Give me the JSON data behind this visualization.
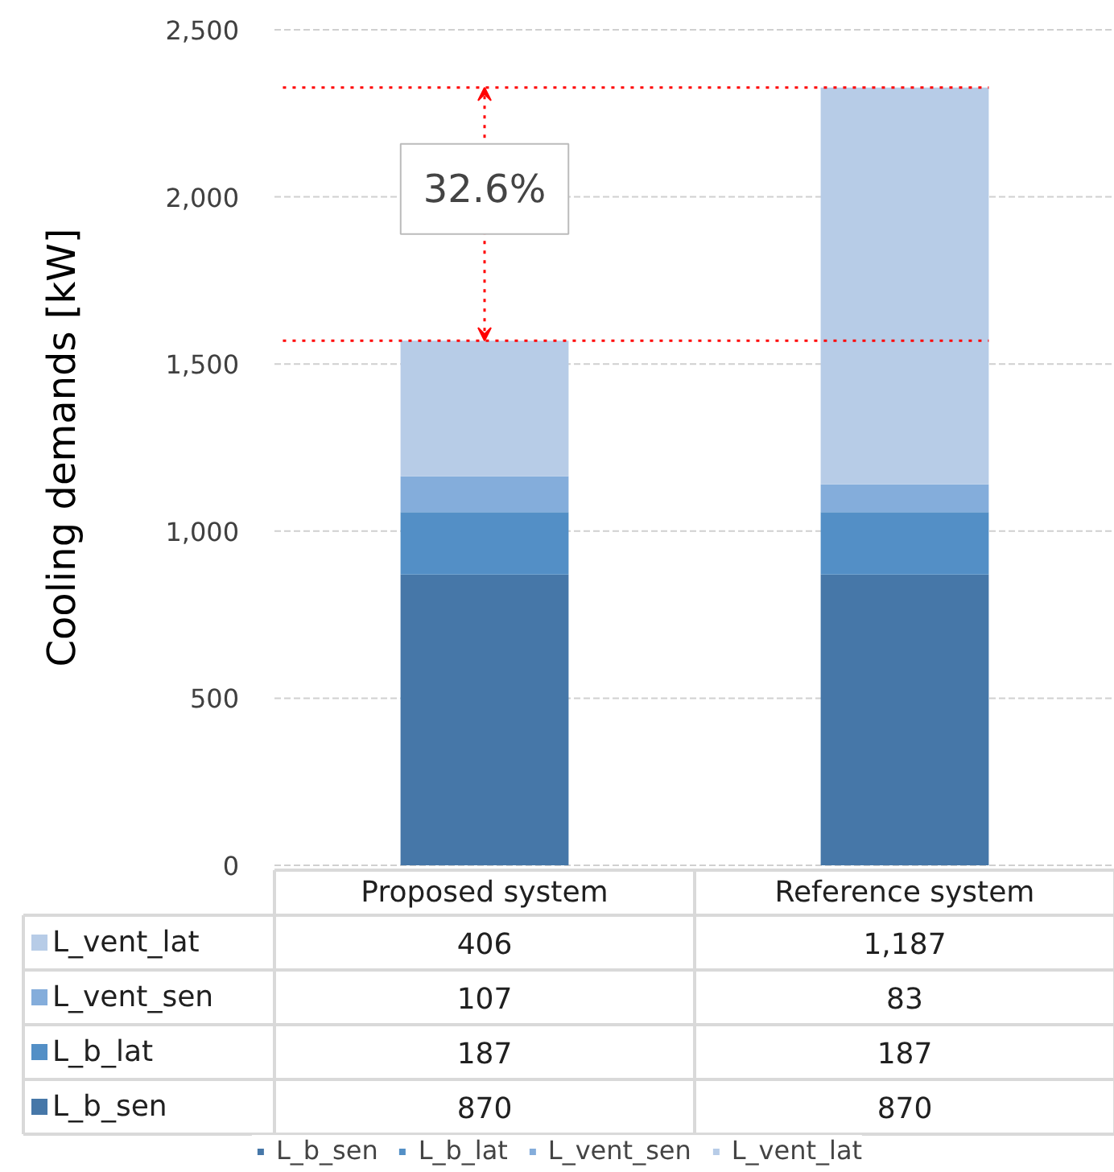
{
  "chart_data": {
    "type": "bar",
    "stacked": true,
    "ylabel": "Cooling demands [kW]",
    "categories": [
      "Proposed system",
      "Reference system"
    ],
    "series": [
      {
        "name": "L_b_sen",
        "color": "#4677a8",
        "values": [
          870,
          870
        ],
        "value_labels": [
          "870",
          "870"
        ]
      },
      {
        "name": "L_b_lat",
        "color": "#538fc6",
        "values": [
          187,
          187
        ],
        "value_labels": [
          "187",
          "187"
        ]
      },
      {
        "name": "L_vent_sen",
        "color": "#84addb",
        "values": [
          107,
          83
        ],
        "value_labels": [
          "107",
          "83"
        ]
      },
      {
        "name": "L_vent_lat",
        "color": "#b7cce7",
        "values": [
          406,
          1187
        ],
        "value_labels": [
          "406",
          "1,187"
        ]
      }
    ],
    "ylim": [
      0,
      2500
    ],
    "yticks": [
      0,
      {
        "value": 500,
        "label": "500"
      },
      {
        "value": 1000,
        "label": "1,000"
      },
      {
        "value": 1500,
        "label": "1,500"
      },
      {
        "value": 2000,
        "label": "2,000"
      },
      {
        "value": 2500,
        "label": "2,500"
      }
    ],
    "grid": "y",
    "legend": "bottom",
    "ref_lines": [
      {
        "axis": "y",
        "value": 1570,
        "color": "#ff0000",
        "line_style": "dotted"
      },
      {
        "axis": "y",
        "value": 2327,
        "color": "#ff0000",
        "line_style": "dotted"
      }
    ],
    "annotations": [
      "32.6%"
    ]
  }
}
